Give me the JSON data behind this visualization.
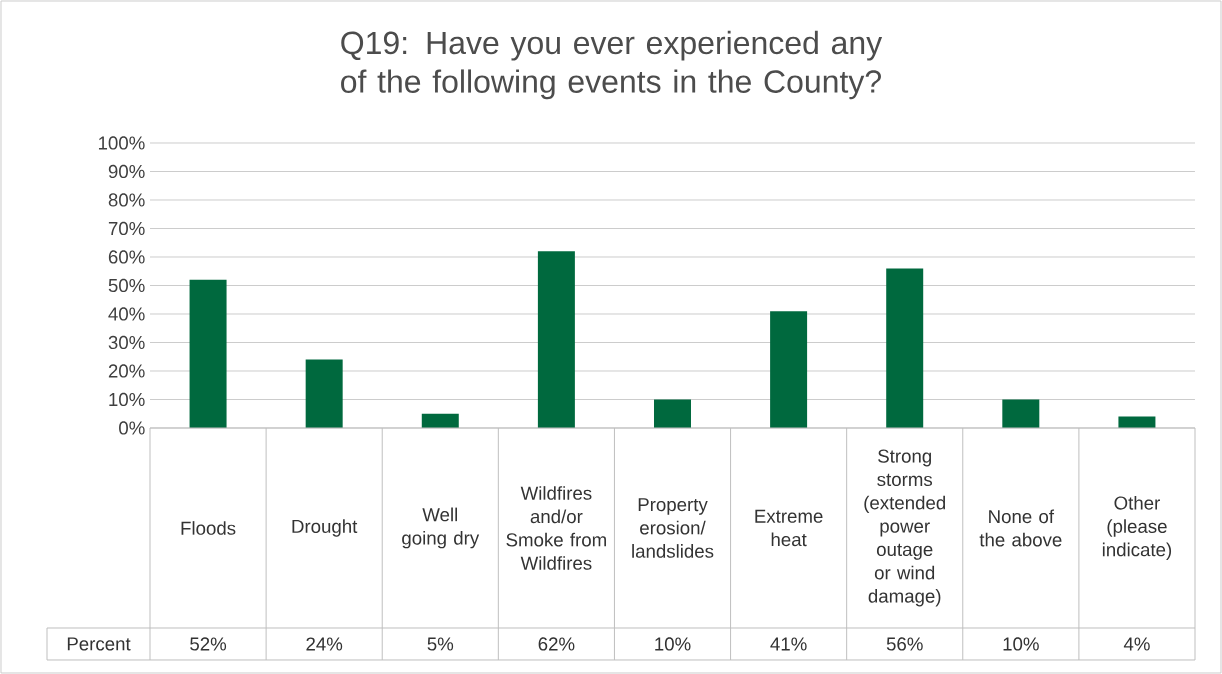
{
  "chart_data": {
    "type": "bar",
    "title": "Q19: Have you ever experienced any of the following events in the County?",
    "categories": [
      "Floods",
      "Drought",
      "Well going dry",
      "Wildfires and/or Smoke from Wildfires",
      "Property erosion/landslides",
      "Extreme heat",
      "Strong storms (extended power outage or wind damage)",
      "None of the above",
      "Other (please indicate)"
    ],
    "series": [
      {
        "name": "Percent",
        "color": "#00693e",
        "values": [
          52,
          24,
          5,
          62,
          10,
          41,
          56,
          10,
          4
        ],
        "value_labels": [
          "52%",
          "24%",
          "5%",
          "62%",
          "10%",
          "41%",
          "56%",
          "10%",
          "4%"
        ]
      }
    ],
    "ylim": [
      0,
      100
    ],
    "yticks": [
      {
        "value": 0,
        "label": "0%"
      },
      {
        "value": 10,
        "label": "10%"
      },
      {
        "value": 20,
        "label": "20%"
      },
      {
        "value": 30,
        "label": "30%"
      },
      {
        "value": 40,
        "label": "40%"
      },
      {
        "value": 50,
        "label": "50%"
      },
      {
        "value": 60,
        "label": "60%"
      },
      {
        "value": 70,
        "label": "70%"
      },
      {
        "value": 80,
        "label": "80%"
      },
      {
        "value": 90,
        "label": "90%"
      },
      {
        "value": 100,
        "label": "100%"
      }
    ],
    "grid": "y"
  }
}
